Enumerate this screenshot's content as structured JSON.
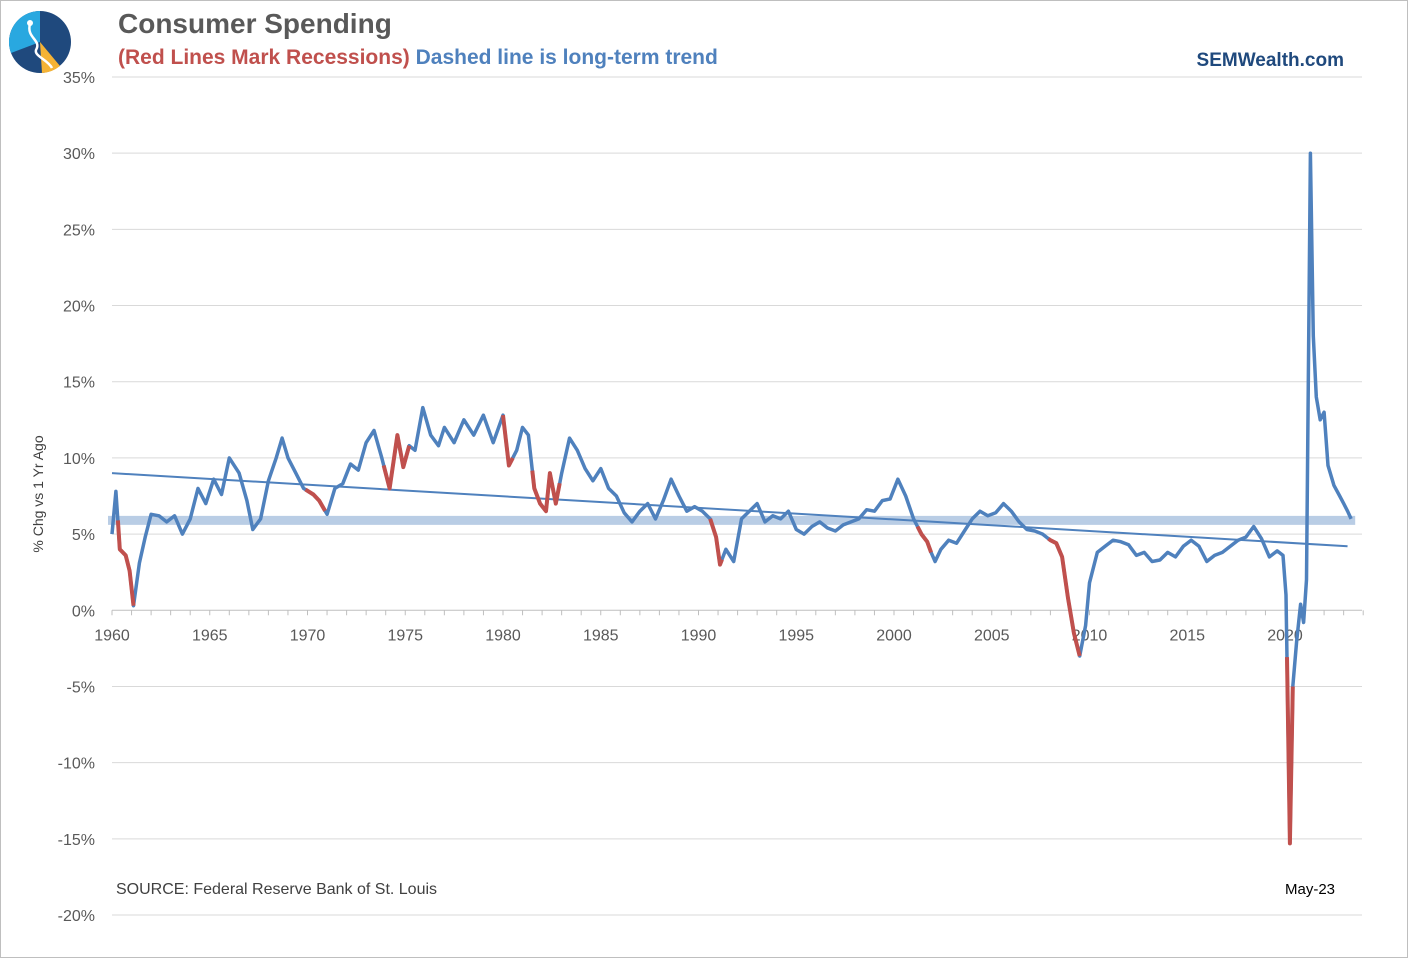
{
  "header": {
    "title": "Consumer Spending",
    "subtitle_red": "(Red Lines Mark Recessions)",
    "subtitle_blue": "Dashed line is long-term trend",
    "brand": "SEMWealth.com"
  },
  "footer": {
    "source": "SOURCE:  Federal Reserve Bank of St. Louis",
    "last_label": "May-23"
  },
  "colors": {
    "series": "#4f81bd",
    "recession": "#c0504d",
    "band": "#b9cde5",
    "grid": "#d9d9d9",
    "logo_dark": "#1f497d",
    "logo_light": "#29a8e0",
    "logo_accent": "#f5b335"
  },
  "chart_data": {
    "type": "line",
    "ylabel": "% Chg vs 1 Yr Ago",
    "xlabel": "",
    "ylim": [
      -20,
      35
    ],
    "xlim": [
      1960,
      2024
    ],
    "y_ticks": [
      "-20%",
      "-15%",
      "-10%",
      "-5%",
      "0%",
      "5%",
      "10%",
      "15%",
      "20%",
      "25%",
      "30%",
      "35%"
    ],
    "y_tick_values": [
      -20,
      -15,
      -10,
      -5,
      0,
      5,
      10,
      15,
      20,
      25,
      30,
      35
    ],
    "x_ticks": [
      "1960",
      "1965",
      "1970",
      "1975",
      "1980",
      "1985",
      "1990",
      "1995",
      "2000",
      "2005",
      "2010",
      "2015",
      "2020"
    ],
    "x_tick_values": [
      1960,
      1965,
      1970,
      1975,
      1980,
      1985,
      1990,
      1995,
      2000,
      2005,
      2010,
      2015,
      2020
    ],
    "grid": true,
    "series": [
      {
        "values": [
          [
            1960.0,
            5.0
          ],
          [
            1960.2,
            7.8
          ],
          [
            1960.4,
            4.0
          ],
          [
            1960.7,
            3.6
          ],
          [
            1960.9,
            2.6
          ],
          [
            1961.1,
            0.3
          ],
          [
            1961.4,
            3.1
          ],
          [
            1961.7,
            4.8
          ],
          [
            1962.0,
            6.3
          ],
          [
            1962.4,
            6.2
          ],
          [
            1962.8,
            5.8
          ],
          [
            1963.2,
            6.2
          ],
          [
            1963.6,
            5.0
          ],
          [
            1964.0,
            6.0
          ],
          [
            1964.4,
            8.0
          ],
          [
            1964.8,
            7.0
          ],
          [
            1965.2,
            8.6
          ],
          [
            1965.6,
            7.6
          ],
          [
            1966.0,
            10.0
          ],
          [
            1966.5,
            9.0
          ],
          [
            1966.9,
            7.2
          ],
          [
            1967.2,
            5.3
          ],
          [
            1967.6,
            6.0
          ],
          [
            1968.0,
            8.5
          ],
          [
            1968.4,
            10.0
          ],
          [
            1968.7,
            11.3
          ],
          [
            1969.0,
            10.0
          ],
          [
            1969.4,
            9.0
          ],
          [
            1969.8,
            8.0
          ],
          [
            1970.3,
            7.6
          ],
          [
            1970.6,
            7.2
          ],
          [
            1971.0,
            6.3
          ],
          [
            1971.4,
            8.0
          ],
          [
            1971.8,
            8.3
          ],
          [
            1972.2,
            9.6
          ],
          [
            1972.6,
            9.2
          ],
          [
            1973.0,
            11.0
          ],
          [
            1973.4,
            11.8
          ],
          [
            1973.8,
            10.0
          ],
          [
            1974.2,
            8.0
          ],
          [
            1974.6,
            11.5
          ],
          [
            1974.9,
            9.4
          ],
          [
            1975.2,
            10.8
          ],
          [
            1975.5,
            10.5
          ],
          [
            1975.9,
            13.3
          ],
          [
            1976.3,
            11.5
          ],
          [
            1976.7,
            10.8
          ],
          [
            1977.0,
            12.0
          ],
          [
            1977.5,
            11.0
          ],
          [
            1978.0,
            12.5
          ],
          [
            1978.5,
            11.5
          ],
          [
            1979.0,
            12.8
          ],
          [
            1979.5,
            11.0
          ],
          [
            1980.0,
            12.8
          ],
          [
            1980.3,
            9.5
          ],
          [
            1980.7,
            10.5
          ],
          [
            1981.0,
            12.0
          ],
          [
            1981.3,
            11.5
          ],
          [
            1981.6,
            8.0
          ],
          [
            1981.9,
            7.0
          ],
          [
            1982.2,
            6.5
          ],
          [
            1982.4,
            9.0
          ],
          [
            1982.7,
            7.0
          ],
          [
            1983.0,
            9.0
          ],
          [
            1983.4,
            11.3
          ],
          [
            1983.8,
            10.5
          ],
          [
            1984.2,
            9.3
          ],
          [
            1984.6,
            8.5
          ],
          [
            1985.0,
            9.3
          ],
          [
            1985.4,
            8.0
          ],
          [
            1985.8,
            7.5
          ],
          [
            1986.2,
            6.4
          ],
          [
            1986.6,
            5.8
          ],
          [
            1987.0,
            6.5
          ],
          [
            1987.4,
            7.0
          ],
          [
            1987.8,
            6.0
          ],
          [
            1988.2,
            7.2
          ],
          [
            1988.6,
            8.6
          ],
          [
            1989.0,
            7.5
          ],
          [
            1989.4,
            6.5
          ],
          [
            1989.8,
            6.8
          ],
          [
            1990.2,
            6.5
          ],
          [
            1990.6,
            6.0
          ],
          [
            1990.9,
            4.8
          ],
          [
            1991.1,
            3.0
          ],
          [
            1991.4,
            4.0
          ],
          [
            1991.8,
            3.2
          ],
          [
            1992.2,
            6.0
          ],
          [
            1992.6,
            6.5
          ],
          [
            1993.0,
            7.0
          ],
          [
            1993.4,
            5.8
          ],
          [
            1993.8,
            6.2
          ],
          [
            1994.2,
            6.0
          ],
          [
            1994.6,
            6.5
          ],
          [
            1995.0,
            5.3
          ],
          [
            1995.4,
            5.0
          ],
          [
            1995.8,
            5.5
          ],
          [
            1996.2,
            5.8
          ],
          [
            1996.6,
            5.4
          ],
          [
            1997.0,
            5.2
          ],
          [
            1997.4,
            5.6
          ],
          [
            1997.8,
            5.8
          ],
          [
            1998.2,
            6.0
          ],
          [
            1998.6,
            6.6
          ],
          [
            1999.0,
            6.5
          ],
          [
            1999.4,
            7.2
          ],
          [
            1999.8,
            7.3
          ],
          [
            2000.2,
            8.6
          ],
          [
            2000.6,
            7.5
          ],
          [
            2001.0,
            6.0
          ],
          [
            2001.4,
            5.0
          ],
          [
            2001.7,
            4.5
          ],
          [
            2001.9,
            3.8
          ],
          [
            2002.1,
            3.2
          ],
          [
            2002.4,
            4.0
          ],
          [
            2002.8,
            4.6
          ],
          [
            2003.2,
            4.4
          ],
          [
            2003.6,
            5.2
          ],
          [
            2004.0,
            6.0
          ],
          [
            2004.4,
            6.5
          ],
          [
            2004.8,
            6.2
          ],
          [
            2005.2,
            6.4
          ],
          [
            2005.6,
            7.0
          ],
          [
            2006.0,
            6.5
          ],
          [
            2006.4,
            5.8
          ],
          [
            2006.8,
            5.3
          ],
          [
            2007.2,
            5.2
          ],
          [
            2007.6,
            5.0
          ],
          [
            2008.0,
            4.6
          ],
          [
            2008.3,
            4.4
          ],
          [
            2008.6,
            3.5
          ],
          [
            2008.9,
            0.8
          ],
          [
            2009.2,
            -1.5
          ],
          [
            2009.5,
            -3.0
          ],
          [
            2009.8,
            -1.0
          ],
          [
            2010.0,
            1.8
          ],
          [
            2010.4,
            3.8
          ],
          [
            2010.8,
            4.2
          ],
          [
            2011.2,
            4.6
          ],
          [
            2011.6,
            4.5
          ],
          [
            2012.0,
            4.3
          ],
          [
            2012.4,
            3.6
          ],
          [
            2012.8,
            3.8
          ],
          [
            2013.2,
            3.2
          ],
          [
            2013.6,
            3.3
          ],
          [
            2014.0,
            3.8
          ],
          [
            2014.4,
            3.5
          ],
          [
            2014.8,
            4.2
          ],
          [
            2015.2,
            4.6
          ],
          [
            2015.6,
            4.2
          ],
          [
            2016.0,
            3.2
          ],
          [
            2016.4,
            3.6
          ],
          [
            2016.8,
            3.8
          ],
          [
            2017.2,
            4.2
          ],
          [
            2017.6,
            4.6
          ],
          [
            2018.0,
            4.8
          ],
          [
            2018.4,
            5.5
          ],
          [
            2018.8,
            4.7
          ],
          [
            2019.2,
            3.5
          ],
          [
            2019.6,
            3.9
          ],
          [
            2019.9,
            3.6
          ],
          [
            2020.05,
            1.0
          ],
          [
            2020.25,
            -15.3
          ],
          [
            2020.4,
            -5.0
          ],
          [
            2020.6,
            -2.0
          ],
          [
            2020.8,
            0.4
          ],
          [
            2020.95,
            -0.8
          ],
          [
            2021.1,
            2.0
          ],
          [
            2021.3,
            30.0
          ],
          [
            2021.45,
            18.0
          ],
          [
            2021.6,
            14.0
          ],
          [
            2021.8,
            12.5
          ],
          [
            2022.0,
            13.0
          ],
          [
            2022.2,
            9.5
          ],
          [
            2022.5,
            8.2
          ],
          [
            2022.8,
            7.5
          ],
          [
            2023.0,
            7.0
          ],
          [
            2023.2,
            6.5
          ],
          [
            2023.38,
            6.0
          ]
        ]
      }
    ],
    "recessions": [
      [
        1960.3,
        1961.1
      ],
      [
        1969.9,
        1970.9
      ],
      [
        1973.9,
        1975.2
      ],
      [
        1980.0,
        1980.5
      ],
      [
        1981.5,
        1982.9
      ],
      [
        1990.6,
        1991.2
      ],
      [
        2001.2,
        2001.9
      ],
      [
        2007.9,
        2009.5
      ],
      [
        2020.1,
        2020.4
      ]
    ],
    "trend": {
      "start": [
        1960,
        9.0
      ],
      "end": [
        2023.2,
        4.2
      ]
    },
    "band": {
      "y": 5.9
    }
  }
}
